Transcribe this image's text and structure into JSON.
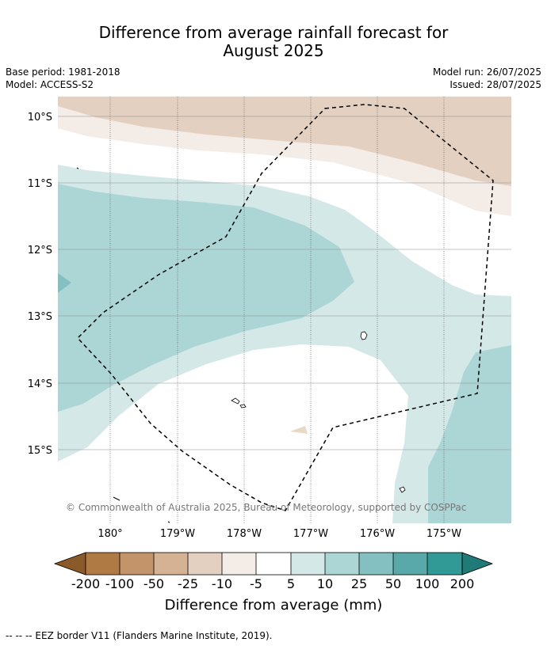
{
  "title_line1": "Difference from average rainfall forecast for",
  "title_line2": "August 2025",
  "meta": {
    "base_period": "Base period: 1981-2018",
    "model": "Model: ACCESS-S2",
    "model_run": "Model run: 26/07/2025",
    "issued": "Issued: 28/07/2025"
  },
  "map": {
    "lat_labels": [
      "10°S",
      "11°S",
      "12°S",
      "13°S",
      "14°S",
      "15°S"
    ],
    "lon_labels": [
      "180°",
      "179°W",
      "178°W",
      "177°W",
      "176°W",
      "175°W"
    ],
    "copyright": "© Commonwealth of Australia 2025, Bureau of Meteorology, supported by COSPPac",
    "region": "EEZ boundary (dashed)"
  },
  "colorbar": {
    "label": "Difference from average (mm)",
    "ticks": [
      "-200",
      "-100",
      "-50",
      "-25",
      "-10",
      "-5",
      "5",
      "10",
      "25",
      "50",
      "100",
      "200"
    ],
    "colors": {
      "below_-200": "#8b5a2b",
      "-200_-100": "#b07a45",
      "-100_-50": "#c39469",
      "-50_-25": "#d5b294",
      "-25_-10": "#e3d0c0",
      "-10_-5": "#f4ece7",
      "-5_5": "#ffffff",
      "5_10": "#d5e8e8",
      "10_25": "#acd6d6",
      "25_50": "#84c0c1",
      "50_100": "#5aa9aa",
      "100_200": "#319a97",
      "above_200": "#1f7a78"
    }
  },
  "footer": "-- -- -- EEZ border V11 (Flanders Marine Institute, 2019)."
}
